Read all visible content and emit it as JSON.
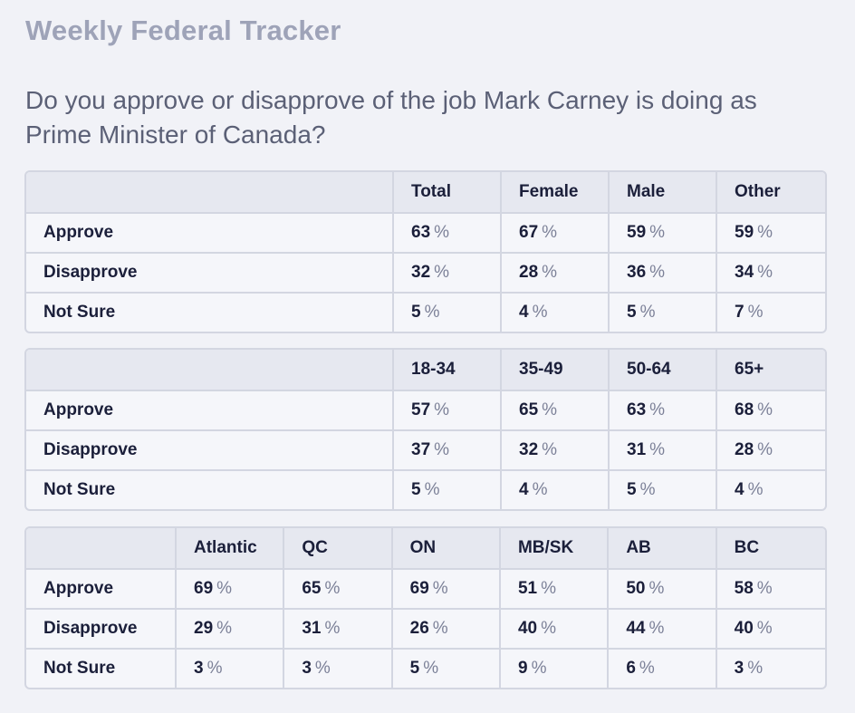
{
  "title": "Weekly Federal Tracker",
  "question": "Do you approve or disapprove of the job Mark Carney is doing as Prime Minister of Canada?",
  "percent_sign": "%",
  "chart_data": [
    {
      "type": "table",
      "id": "gender",
      "columns": [
        "Total",
        "Female",
        "Male",
        "Other"
      ],
      "rows": [
        {
          "label": "Approve",
          "values": [
            63,
            67,
            59,
            59
          ]
        },
        {
          "label": "Disapprove",
          "values": [
            32,
            28,
            36,
            34
          ]
        },
        {
          "label": "Not Sure",
          "values": [
            5,
            4,
            5,
            7
          ]
        }
      ]
    },
    {
      "type": "table",
      "id": "age",
      "columns": [
        "18-34",
        "35-49",
        "50-64",
        "65+"
      ],
      "rows": [
        {
          "label": "Approve",
          "values": [
            57,
            65,
            63,
            68
          ]
        },
        {
          "label": "Disapprove",
          "values": [
            37,
            32,
            31,
            28
          ]
        },
        {
          "label": "Not Sure",
          "values": [
            5,
            4,
            5,
            4
          ]
        }
      ]
    },
    {
      "type": "table",
      "id": "region",
      "columns": [
        "Atlantic",
        "QC",
        "ON",
        "MB/SK",
        "AB",
        "BC"
      ],
      "rows": [
        {
          "label": "Approve",
          "values": [
            69,
            65,
            69,
            51,
            50,
            58
          ]
        },
        {
          "label": "Disapprove",
          "values": [
            29,
            31,
            26,
            40,
            44,
            40
          ]
        },
        {
          "label": "Not Sure",
          "values": [
            3,
            3,
            5,
            9,
            6,
            3
          ]
        }
      ]
    }
  ]
}
